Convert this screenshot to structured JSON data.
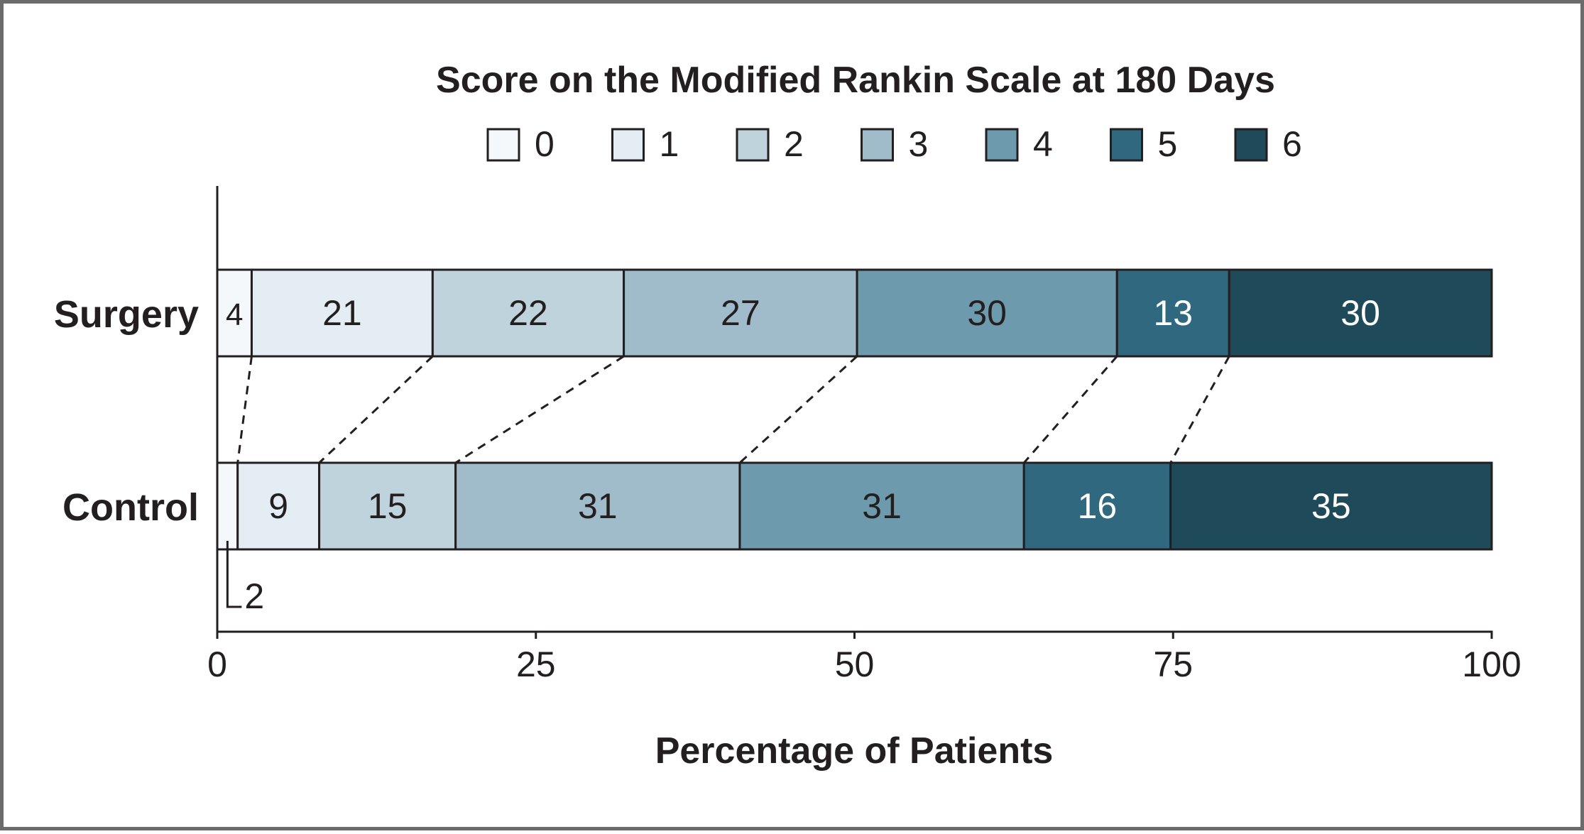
{
  "chart_data": {
    "type": "bar",
    "orientation": "horizontal",
    "stacked": true,
    "title": "Score on the Modified Rankin Scale at 180 Days",
    "xlabel": "Percentage of Patients",
    "ylabel": "",
    "xlim": [
      0,
      100
    ],
    "xticks": [
      "0",
      "25",
      "50",
      "75",
      "100"
    ],
    "categories": [
      "Surgery",
      "Control"
    ],
    "series": [
      {
        "name": "0",
        "values": [
          2.7,
          1.6
        ],
        "labels": [
          "4",
          "2"
        ],
        "color": "#f4f8fa"
      },
      {
        "name": "1",
        "values": [
          14.2,
          6.4
        ],
        "labels": [
          "21",
          "9"
        ],
        "color": "#e3edf3"
      },
      {
        "name": "2",
        "values": [
          15.0,
          10.7
        ],
        "labels": [
          "22",
          "15"
        ],
        "color": "#bfd3dc"
      },
      {
        "name": "3",
        "values": [
          18.3,
          22.3
        ],
        "labels": [
          "27",
          "31"
        ],
        "color": "#a0bccb"
      },
      {
        "name": "4",
        "values": [
          20.4,
          22.3
        ],
        "labels": [
          "30",
          "31"
        ],
        "color": "#6e9aad"
      },
      {
        "name": "5",
        "values": [
          8.8,
          11.5
        ],
        "labels": [
          "13",
          "16"
        ],
        "color": "#2f687f"
      },
      {
        "name": "6",
        "values": [
          20.6,
          25.2
        ],
        "labels": [
          "30",
          "35"
        ],
        "color": "#1f4a5a"
      }
    ],
    "annotation": "2",
    "legend_position": "top",
    "grid": false
  }
}
